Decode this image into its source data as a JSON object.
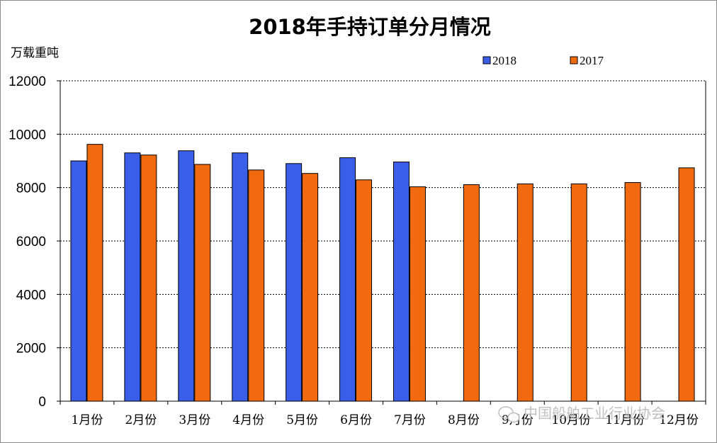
{
  "chart_data": {
    "type": "bar",
    "title": "2018年手持订单分月情况",
    "ylabel": "万载重吨",
    "xlabel": "",
    "categories": [
      "1月份",
      "2月份",
      "3月份",
      "4月份",
      "5月份",
      "6月份",
      "7月份",
      "8月份",
      "9月份",
      "10月份",
      "11月份",
      "12月份"
    ],
    "series": [
      {
        "name": "2018",
        "color": "#3a5ee8",
        "values": [
          9000,
          9300,
          9380,
          9300,
          8900,
          9120,
          8960,
          null,
          null,
          null,
          null,
          null
        ]
      },
      {
        "name": "2017",
        "color": "#f26a10",
        "values": [
          9620,
          9220,
          8870,
          8660,
          8530,
          8290,
          8030,
          8110,
          8140,
          8140,
          8190,
          8740
        ]
      }
    ],
    "ylim": [
      0,
      12000
    ],
    "yticks": [
      0,
      2000,
      4000,
      6000,
      8000,
      10000,
      12000
    ],
    "grid": true,
    "legend_position": "top-right"
  },
  "watermark": {
    "text": "中国船舶工业行业协会",
    "icon": "wechat-icon"
  }
}
